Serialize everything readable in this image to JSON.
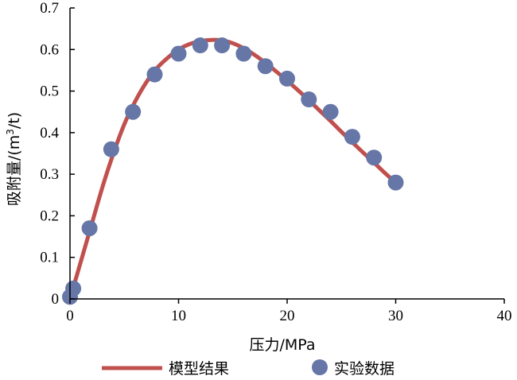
{
  "chart_data": {
    "type": "scatter",
    "xlabel": "压力/MPa",
    "ylabel_main": "吸附量/(m",
    "ylabel_sup": "3",
    "ylabel_tail": "/t)",
    "xlim": [
      0,
      40
    ],
    "ylim": [
      0,
      0.7
    ],
    "xticks": [
      0,
      10,
      20,
      30,
      40
    ],
    "yticks": [
      0,
      0.1,
      0.2,
      0.3,
      0.4,
      0.5,
      0.6,
      0.7
    ],
    "grid": false,
    "legend_position": "bottom",
    "series": [
      {
        "name": "模型结果",
        "kind": "line",
        "color": "#c0504d",
        "x": [
          0,
          1,
          2,
          3,
          4,
          5,
          6,
          7,
          8,
          9,
          10,
          11,
          12,
          13,
          14,
          15,
          16,
          17,
          18,
          19,
          20,
          21,
          22,
          23,
          24,
          25,
          26,
          27,
          28,
          29,
          30
        ],
        "y": [
          0.0,
          0.09,
          0.18,
          0.27,
          0.35,
          0.42,
          0.475,
          0.52,
          0.555,
          0.58,
          0.6,
          0.613,
          0.62,
          0.623,
          0.622,
          0.615,
          0.603,
          0.587,
          0.568,
          0.547,
          0.525,
          0.502,
          0.478,
          0.453,
          0.428,
          0.402,
          0.377,
          0.352,
          0.328,
          0.303,
          0.28
        ]
      },
      {
        "name": "实验数据",
        "kind": "scatter",
        "color": "#6676a7",
        "x": [
          0,
          0.3,
          1.8,
          3.8,
          5.8,
          7.8,
          10,
          12,
          14,
          16,
          18,
          20,
          22,
          24,
          26,
          28,
          30
        ],
        "y": [
          0.005,
          0.025,
          0.17,
          0.36,
          0.45,
          0.54,
          0.59,
          0.61,
          0.61,
          0.59,
          0.56,
          0.53,
          0.48,
          0.45,
          0.39,
          0.34,
          0.28
        ]
      }
    ]
  }
}
